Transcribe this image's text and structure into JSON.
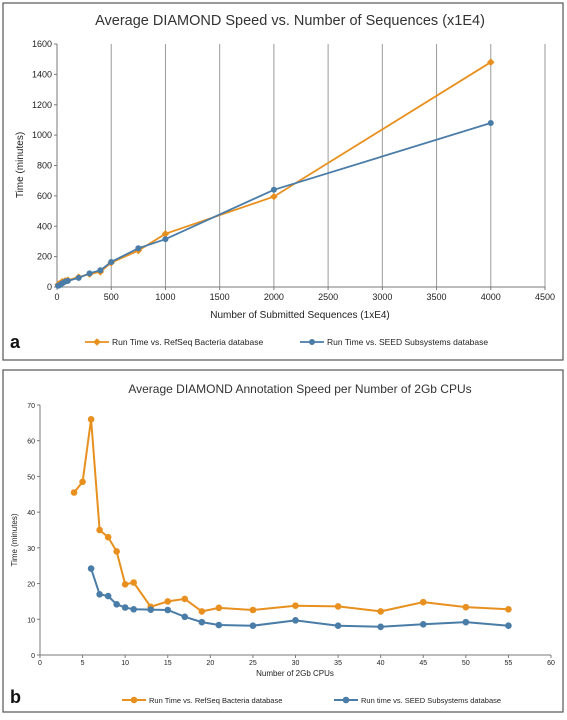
{
  "colors": {
    "orange": "#E8901F",
    "blue": "#4A7CA8",
    "border": "#555555"
  },
  "chart_data": [
    {
      "panel_label": "a",
      "type": "line",
      "title": "Average DIAMOND Speed vs. Number of Sequences (x1E4)",
      "xlabel": "Number of Submitted Sequences (1xE4)",
      "ylabel": "Time (minutes)",
      "xlim": [
        0,
        4500
      ],
      "ylim": [
        0,
        1600
      ],
      "xticks": [
        "0",
        "500",
        "1000",
        "1500",
        "2000",
        "2500",
        "3000",
        "3500",
        "4000",
        "4500"
      ],
      "yticks": [
        "0",
        "200",
        "400",
        "600",
        "800",
        "1000",
        "1200",
        "1400",
        "1600"
      ],
      "grid": "vertical",
      "legend_position": "bottom",
      "series": [
        {
          "name": "Run Time vs. RefSeq Bacteria database",
          "color": "orange",
          "points": [
            [
              10,
              15
            ],
            [
              20,
              20
            ],
            [
              30,
              25
            ],
            [
              50,
              35
            ],
            [
              75,
              40
            ],
            [
              100,
              45
            ],
            [
              200,
              65
            ],
            [
              300,
              85
            ],
            [
              400,
              100
            ],
            [
              500,
              160
            ],
            [
              750,
              240
            ],
            [
              1000,
              350
            ],
            [
              2000,
              595
            ],
            [
              4000,
              1480
            ]
          ]
        },
        {
          "name": "Run Time vs. SEED Subsystems database",
          "color": "blue",
          "points": [
            [
              10,
              8
            ],
            [
              20,
              10
            ],
            [
              30,
              15
            ],
            [
              50,
              25
            ],
            [
              75,
              35
            ],
            [
              100,
              40
            ],
            [
              200,
              60
            ],
            [
              300,
              90
            ],
            [
              400,
              110
            ],
            [
              500,
              165
            ],
            [
              750,
              255
            ],
            [
              1000,
              315
            ],
            [
              2000,
              640
            ],
            [
              4000,
              1080
            ]
          ]
        }
      ]
    },
    {
      "panel_label": "b",
      "type": "line",
      "title": "Average DIAMOND Annotation Speed per Number of 2Gb CPUs",
      "xlabel": "Number of 2Gb CPUs",
      "ylabel": "Time (minutes)",
      "xlim": [
        0,
        60
      ],
      "ylim": [
        0,
        70
      ],
      "xticks": [
        "0",
        "5",
        "10",
        "15",
        "20",
        "25",
        "30",
        "35",
        "40",
        "45",
        "50",
        "55",
        "60"
      ],
      "yticks": [
        "0",
        "10",
        "20",
        "30",
        "40",
        "50",
        "60",
        "70"
      ],
      "grid": "none",
      "legend_position": "bottom",
      "series": [
        {
          "name": "Run Time vs. RefSeq Bacteria database",
          "color": "orange",
          "points": [
            [
              4,
              45.5
            ],
            [
              5,
              48.5
            ],
            [
              6,
              66
            ],
            [
              7,
              35
            ],
            [
              8,
              33
            ],
            [
              9,
              29
            ],
            [
              10,
              19.8
            ],
            [
              11,
              20.3
            ],
            [
              13,
              13.5
            ],
            [
              15,
              15
            ],
            [
              17,
              15.7
            ],
            [
              19,
              12.2
            ],
            [
              21,
              13.2
            ],
            [
              25,
              12.6
            ],
            [
              30,
              13.8
            ],
            [
              35,
              13.6
            ],
            [
              40,
              12.2
            ],
            [
              45,
              14.8
            ],
            [
              50,
              13.4
            ],
            [
              55,
              12.8
            ]
          ]
        },
        {
          "name": "Run time vs. SEED Subsystems database",
          "color": "blue",
          "points": [
            [
              6,
              24.2
            ],
            [
              7,
              17
            ],
            [
              8,
              16.5
            ],
            [
              9,
              14.2
            ],
            [
              10,
              13.3
            ],
            [
              11,
              12.8
            ],
            [
              13,
              12.7
            ],
            [
              15,
              12.6
            ],
            [
              17,
              10.7
            ],
            [
              19,
              9.2
            ],
            [
              21,
              8.4
            ],
            [
              25,
              8.2
            ],
            [
              30,
              9.7
            ],
            [
              35,
              8.2
            ],
            [
              40,
              7.9
            ],
            [
              45,
              8.6
            ],
            [
              50,
              9.2
            ],
            [
              55,
              8.2
            ]
          ]
        }
      ]
    }
  ]
}
